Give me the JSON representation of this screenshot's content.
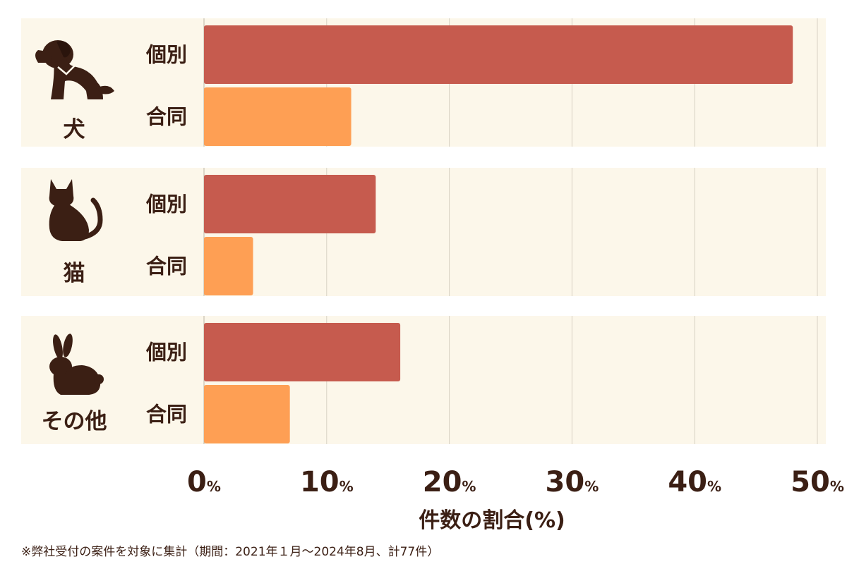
{
  "chart_data": {
    "type": "bar",
    "orientation": "horizontal",
    "groups": [
      {
        "name": "犬",
        "icon": "dog-icon"
      },
      {
        "name": "猫",
        "icon": "cat-icon"
      },
      {
        "name": "その他",
        "icon": "rabbit-icon"
      }
    ],
    "series": [
      {
        "name": "個別",
        "color": "#c65b4e",
        "values": [
          48,
          14,
          16
        ]
      },
      {
        "name": "合同",
        "color": "#fe9f54",
        "values": [
          12,
          4,
          7
        ]
      }
    ],
    "xlim": [
      0,
      50
    ],
    "xticks": [
      0,
      10,
      20,
      30,
      40,
      50
    ],
    "tick_suffix": "%",
    "xlabel": "件数の割合(%)",
    "grid": true,
    "panel_color": "#fcf7ea",
    "grid_color": "#d8d2c4",
    "text_color": "#3b1f14"
  },
  "footnote": "※弊社受付の案件を対象に集計（期間：2021年１月～2024年8月、計77件）"
}
